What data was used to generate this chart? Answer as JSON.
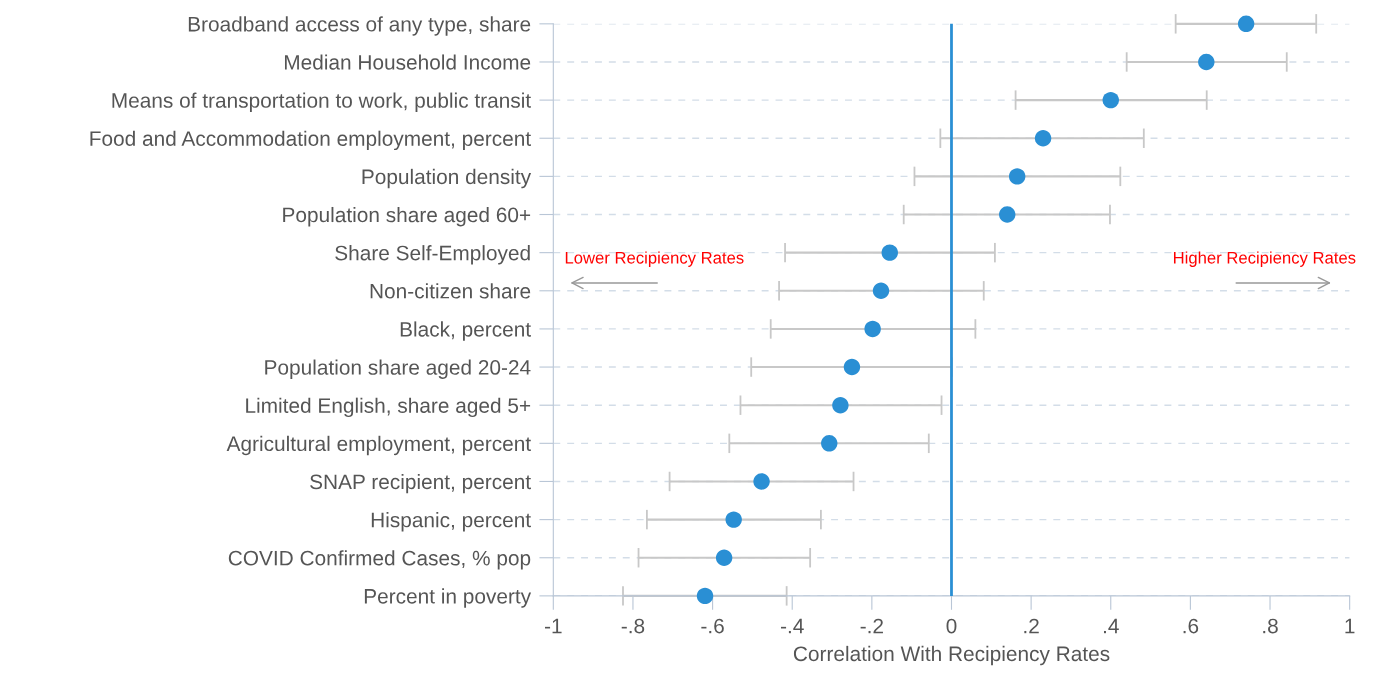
{
  "chart_data": {
    "type": "scatter",
    "orientation": "horizontal",
    "xlabel": "Correlation With Recipiency Rates",
    "categories": [
      "Broadband access of any type, share",
      "Median Household Income",
      "Means of transportation to work, public transit",
      "Food and Accommodation employment, percent",
      "Population density",
      "Population share aged 60+",
      "Share Self-Employed",
      "Non-citizen share",
      "Black, percent",
      "Population share aged 20-24",
      "Limited English, share aged 5+",
      "Agricultural employment, percent",
      "SNAP recipient, percent",
      "Hispanic, percent",
      "COVID Confirmed Cases, % pop",
      "Percent in poverty"
    ],
    "series": [
      {
        "color": "#2a8fd4",
        "values": [
          0.74,
          0.64,
          0.4,
          0.23,
          0.165,
          0.14,
          -0.155,
          -0.177,
          -0.198,
          -0.25,
          -0.279,
          -0.307,
          -0.477,
          -0.547,
          -0.571,
          -0.619
        ],
        "errors": [
          [
            0.563,
            0.916
          ],
          [
            0.44,
            0.842
          ],
          [
            0.161,
            0.641
          ],
          [
            -0.028,
            0.483
          ],
          [
            -0.093,
            0.424
          ],
          [
            -0.12,
            0.398
          ],
          [
            -0.418,
            0.109
          ],
          [
            -0.433,
            0.081
          ],
          [
            -0.454,
            0.06
          ],
          [
            -0.503,
            0.001
          ],
          [
            -0.53,
            -0.025
          ],
          [
            -0.558,
            -0.057
          ],
          [
            -0.708,
            -0.246
          ],
          [
            -0.765,
            -0.328
          ],
          [
            -0.786,
            -0.355
          ],
          [
            -0.825,
            -0.414
          ]
        ]
      }
    ],
    "xlim": [
      -1,
      1
    ],
    "xticks": [
      -1,
      {
        "value": -0.8,
        "label": "-.8"
      },
      {
        "value": -0.6,
        "label": "-.6"
      },
      {
        "value": -0.4,
        "label": "-.4"
      },
      {
        "value": -0.2,
        "label": "-.2"
      },
      0,
      {
        "value": 0.2,
        "label": ".2"
      },
      {
        "value": 0.4,
        "label": ".4"
      },
      {
        "value": 0.6,
        "label": ".6"
      },
      {
        "value": 0.8,
        "label": ".8"
      },
      1
    ],
    "ref_lines": [
      {
        "axis": "x",
        "value": 0,
        "color": "#2a8fd4"
      }
    ],
    "annotations": [
      "Lower Recipiency Rates",
      "Higher Recipiency Rates"
    ],
    "grid": "y",
    "marker": "circle",
    "legend": false
  }
}
